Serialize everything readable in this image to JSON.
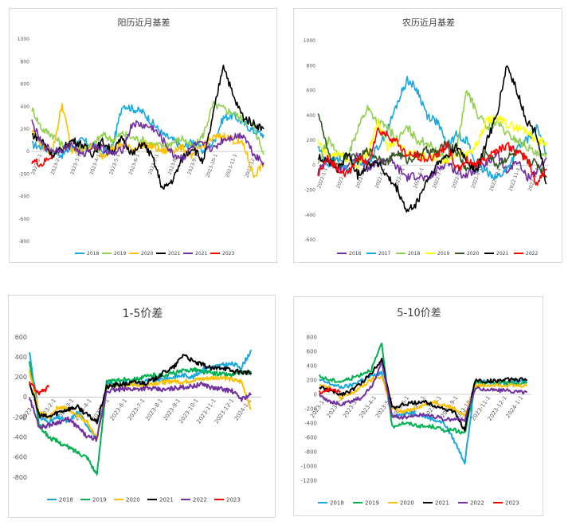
{
  "chart_data": [
    {
      "id": "c1",
      "type": "line",
      "title": "阳历近月基差",
      "ylim": [
        -800,
        1000
      ],
      "yticks": [
        -800,
        -600,
        -400,
        -200,
        0,
        200,
        400,
        600,
        800,
        1000
      ],
      "ytick_labels": [
        "-800",
        "-600",
        "-400",
        "-200",
        "0",
        "200",
        "400",
        "600",
        "800",
        "1000"
      ],
      "x_tick_labels": [
        "2023-1-1",
        "2023-2-1",
        "2023-3-1",
        "2023-4-1",
        "2023-5-1",
        "2023-6-1",
        "2023-7-1",
        "2023-8-1",
        "2023-9-1",
        "2023-10-1",
        "2023-11-1",
        "2023-12-1"
      ],
      "grid": false,
      "legend_position": "bottom",
      "series": [
        {
          "name": "2018",
          "color": "#1aa7e0",
          "values": [
            60,
            40,
            0,
            -30,
            40,
            100,
            50,
            0,
            40,
            420,
            380,
            350,
            250,
            150,
            100,
            40,
            90,
            0,
            80,
            300,
            320,
            250,
            180,
            150
          ]
        },
        {
          "name": "2019",
          "color": "#92d050",
          "values": [
            380,
            200,
            150,
            60,
            30,
            30,
            50,
            150,
            100,
            160,
            120,
            100,
            60,
            50,
            80,
            120,
            20,
            150,
            420,
            380,
            340,
            280,
            230,
            -30
          ]
        },
        {
          "name": "2020",
          "color": "#ffc000",
          "values": [
            180,
            60,
            -20,
            420,
            -10,
            20,
            40,
            -40,
            30,
            50,
            20,
            60,
            40,
            0,
            20,
            30,
            -50,
            60,
            120,
            140,
            100,
            60,
            -220,
            -100
          ]
        },
        {
          "name": "2021",
          "color": "#000000",
          "values": [
            150,
            100,
            -30,
            20,
            100,
            60,
            -20,
            90,
            0,
            120,
            -30,
            80,
            -60,
            -340,
            -250,
            -50,
            40,
            -100,
            330,
            780,
            480,
            300,
            250,
            200
          ]
        },
        {
          "name": "2021",
          "color": "#7030a0",
          "values": [
            260,
            60,
            10,
            20,
            60,
            -40,
            50,
            30,
            -30,
            20,
            250,
            230,
            210,
            100,
            -30,
            -60,
            50,
            60,
            20,
            110,
            130,
            150,
            -20,
            -100
          ]
        },
        {
          "name": "2023",
          "color": "#ff0000",
          "values": [
            -80,
            -120,
            -30
          ]
        }
      ]
    },
    {
      "id": "c2",
      "type": "line",
      "title": "农历近月基差",
      "ylim": [
        -600,
        1000
      ],
      "yticks": [
        -600,
        -400,
        -200,
        0,
        200,
        400,
        600,
        800,
        1000
      ],
      "ytick_labels": [
        "-600",
        "-400",
        "-200",
        "0",
        "200",
        "400",
        "600",
        "800",
        "1000"
      ],
      "x_tick_labels": [
        "2022-1-1",
        "2022-2-1",
        "2022-3-1",
        "2022-4-1",
        "2022-5-1",
        "2022-6-1",
        "2022-7-1",
        "2022-8-1",
        "2022-9-1",
        "2022-10-1",
        "2022-11-1",
        "2022-12-1"
      ],
      "grid": false,
      "legend_position": "bottom",
      "series": [
        {
          "name": "2016",
          "color": "#7030a0",
          "values": [
            -60,
            60,
            -40,
            0,
            100,
            -40,
            20,
            50,
            -20,
            -100,
            -80,
            -120,
            -40,
            30,
            -60,
            -80,
            -20,
            0,
            100,
            -60,
            40,
            -100,
            -50,
            60
          ]
        },
        {
          "name": "2017",
          "color": "#1aa7e0",
          "values": [
            150,
            0,
            60,
            -40,
            40,
            20,
            140,
            280,
            500,
            690,
            600,
            400,
            350,
            150,
            250,
            200,
            -30,
            -50,
            -100,
            -40,
            120,
            200,
            300,
            100
          ]
        },
        {
          "name": "2018",
          "color": "#92d050",
          "values": [
            0,
            200,
            100,
            50,
            300,
            460,
            350,
            300,
            200,
            300,
            200,
            180,
            100,
            60,
            150,
            600,
            420,
            300,
            350,
            250,
            200,
            150,
            80,
            60
          ]
        },
        {
          "name": "2019",
          "color": "#ffff00",
          "values": [
            180,
            60,
            100,
            40,
            -20,
            100,
            340,
            150,
            200,
            100,
            80,
            60,
            40,
            30,
            100,
            80,
            160,
            350,
            380,
            330,
            300,
            280,
            200,
            180
          ]
        },
        {
          "name": "2020",
          "color": "#375623",
          "values": [
            440,
            100,
            -20,
            80,
            40,
            120,
            60,
            30,
            100,
            40,
            80,
            120,
            100,
            180,
            100,
            -40,
            20,
            100,
            0,
            60,
            100,
            40,
            20,
            -100
          ]
        },
        {
          "name": "2021",
          "color": "#000000",
          "values": [
            60,
            40,
            -40,
            100,
            -80,
            0,
            30,
            -100,
            -200,
            -380,
            -300,
            -120,
            0,
            80,
            150,
            30,
            -50,
            200,
            400,
            800,
            600,
            350,
            250,
            -150
          ]
        },
        {
          "name": "2022",
          "color": "#ff0000",
          "values": [
            -80,
            50,
            -20,
            -80,
            60,
            10,
            280,
            240,
            180,
            70,
            80,
            40,
            90,
            160,
            -40,
            40,
            0,
            70,
            120,
            160,
            100,
            60,
            -150,
            -30
          ]
        }
      ]
    },
    {
      "id": "c3",
      "type": "line",
      "title": "1-5价差",
      "ylim": [
        -800,
        600
      ],
      "yticks": [
        -800,
        -600,
        -400,
        -200,
        0,
        200,
        400,
        600
      ],
      "ytick_labels": [
        "-800",
        "-600",
        "-400",
        "-200",
        "0",
        "200",
        "400",
        "600"
      ],
      "x_tick_labels": [
        "2023-1-1",
        "2023-2-1",
        "2023-3-1",
        "2023-4-1",
        "2023-5-1",
        "2023-6-1",
        "2023-7-1",
        "2023-8-1",
        "2023-9-1",
        "2023-10-1",
        "2023-11-1",
        "2023-12-1",
        "2024-1-1"
      ],
      "grid": false,
      "legend_position": "bottom",
      "series": [
        {
          "name": "2018",
          "color": "#1aa7e0",
          "values": [
            450,
            -200,
            -250,
            -200,
            -250,
            -150,
            -280,
            -420,
            150,
            120,
            150,
            140,
            160,
            170,
            180,
            200,
            220,
            200,
            280,
            300,
            320,
            330,
            300,
            470
          ]
        },
        {
          "name": "2019",
          "color": "#00b050",
          "values": [
            350,
            -280,
            -400,
            -450,
            -500,
            -550,
            -600,
            -780,
            150,
            160,
            180,
            180,
            200,
            220,
            220,
            240,
            260,
            280,
            250,
            240,
            230,
            220,
            250,
            240
          ]
        },
        {
          "name": "2020",
          "color": "#ffc000",
          "values": [
            250,
            -150,
            -200,
            -100,
            -120,
            -180,
            -250,
            -420,
            100,
            120,
            110,
            130,
            120,
            140,
            150,
            160,
            150,
            170,
            180,
            190,
            200,
            170,
            150,
            -120
          ]
        },
        {
          "name": "2021",
          "color": "#000000",
          "values": [
            150,
            -180,
            -200,
            -150,
            -120,
            -100,
            -180,
            -250,
            100,
            120,
            130,
            150,
            140,
            180,
            250,
            300,
            430,
            350,
            320,
            280,
            300,
            260,
            250,
            240
          ]
        },
        {
          "name": "2022",
          "color": "#7030a0",
          "values": [
            0,
            -300,
            -280,
            -250,
            -220,
            -300,
            -400,
            -420,
            60,
            70,
            80,
            80,
            90,
            80,
            70,
            90,
            100,
            110,
            130,
            90,
            80,
            60,
            -20,
            30
          ]
        },
        {
          "name": "2023",
          "color": "#ff0000",
          "values": [
            150,
            30,
            100
          ]
        }
      ]
    },
    {
      "id": "c4",
      "type": "line",
      "title": "5-10价差",
      "ylim": [
        -1200,
        800
      ],
      "yticks": [
        -1200,
        -1000,
        -800,
        -600,
        -400,
        -200,
        0,
        200,
        400,
        600,
        800
      ],
      "ytick_labels": [
        "-1200",
        "-1000",
        "-800",
        "-600",
        "-400",
        "-200",
        "0",
        "200",
        "400",
        "600",
        "800"
      ],
      "x_tick_labels": [
        "2023-1-1",
        "2023-2-1",
        "2023-3-1",
        "2023-4-1",
        "2023-5-1",
        "2023-6-1",
        "2023-7-1",
        "2023-8-1",
        "2023-9-1",
        "2023-10-1",
        "2023-11-1",
        "2023-12-1",
        "2024-1-1"
      ],
      "grid": false,
      "legend_position": "bottom",
      "series": [
        {
          "name": "2018",
          "color": "#1aa7e0",
          "values": [
            200,
            150,
            100,
            120,
            200,
            250,
            300,
            -300,
            -280,
            -250,
            -300,
            -350,
            -400,
            -650,
            -950,
            180,
            170,
            160,
            180,
            190,
            200
          ]
        },
        {
          "name": "2019",
          "color": "#00b050",
          "values": [
            250,
            200,
            180,
            220,
            280,
            350,
            700,
            -450,
            -400,
            -420,
            -450,
            -450,
            -500,
            -500,
            -550,
            150,
            160,
            170,
            160,
            150,
            170
          ]
        },
        {
          "name": "2020",
          "color": "#ffc000",
          "values": [
            150,
            100,
            -50,
            0,
            100,
            200,
            250,
            -200,
            -250,
            -200,
            -150,
            -100,
            -150,
            -200,
            -300,
            120,
            130,
            140,
            130,
            120,
            130
          ]
        },
        {
          "name": "2021",
          "color": "#000000",
          "values": [
            100,
            50,
            0,
            50,
            150,
            300,
            500,
            -200,
            -150,
            -120,
            -100,
            -150,
            -200,
            -250,
            -500,
            200,
            180,
            190,
            200,
            210,
            200
          ]
        },
        {
          "name": "2022",
          "color": "#7030a0",
          "values": [
            0,
            -100,
            -150,
            -100,
            -50,
            100,
            450,
            -300,
            -320,
            -300,
            -280,
            -300,
            -350,
            -350,
            -350,
            80,
            70,
            60,
            50,
            40,
            30
          ]
        },
        {
          "name": "2023",
          "color": "#ff0000",
          "values": [
            30,
            70,
            30
          ]
        }
      ]
    }
  ]
}
